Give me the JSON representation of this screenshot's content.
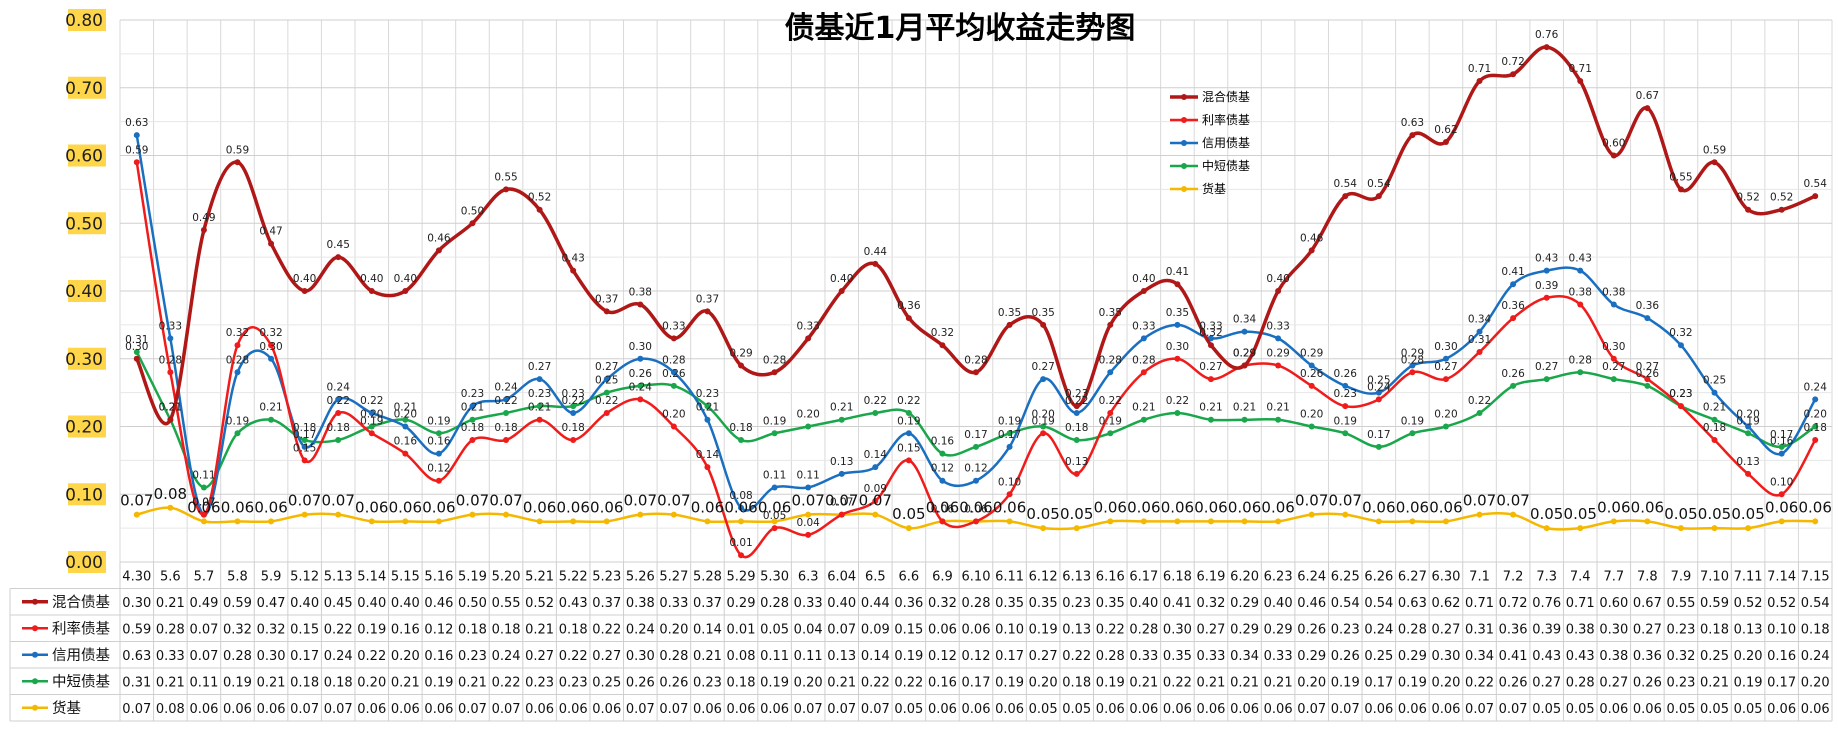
{
  "chart_data": {
    "type": "line",
    "title": "债基近1月平均收益走势图",
    "xlabel": "",
    "ylabel": "",
    "ylim": [
      0,
      0.8
    ],
    "yticks": [
      "0.00",
      "0.10",
      "0.20",
      "0.30",
      "0.40",
      "0.50",
      "0.60",
      "0.70",
      "0.80"
    ],
    "grid": true,
    "legend_position": "top-right",
    "categories": [
      "4.30",
      "5.6",
      "5.7",
      "5.8",
      "5.9",
      "5.12",
      "5.13",
      "5.14",
      "5.15",
      "5.16",
      "5.19",
      "5.20",
      "5.21",
      "5.22",
      "5.23",
      "5.26",
      "5.27",
      "5.28",
      "5.29",
      "5.30",
      "6.3",
      "6.04",
      "6.5",
      "6.6",
      "6.9",
      "6.10",
      "6.11",
      "6.12",
      "6.13",
      "6.16",
      "6.17",
      "6.18",
      "6.19",
      "6.20",
      "6.23",
      "6.24",
      "6.25",
      "6.26",
      "6.27",
      "6.30",
      "7.1",
      "7.2",
      "7.3",
      "7.4",
      "7.7",
      "7.8",
      "7.9",
      "7.10",
      "7.11",
      "7.14",
      "7.15"
    ],
    "series": [
      {
        "name": "混合债基",
        "color": "#b01818",
        "values": [
          0.3,
          0.21,
          0.49,
          0.59,
          0.47,
          0.4,
          0.45,
          0.4,
          0.4,
          0.46,
          0.5,
          0.55,
          0.52,
          0.43,
          0.37,
          0.38,
          0.33,
          0.37,
          0.29,
          0.28,
          0.33,
          0.4,
          0.44,
          0.36,
          0.32,
          0.28,
          0.35,
          0.35,
          0.23,
          0.35,
          0.4,
          0.41,
          0.32,
          0.29,
          0.4,
          0.46,
          0.54,
          0.54,
          0.63,
          0.62,
          0.71,
          0.72,
          0.76,
          0.71,
          0.6,
          0.67,
          0.55,
          0.59,
          0.52,
          0.52,
          0.54
        ],
        "labels": [
          "0.30",
          "0.21",
          "0.49",
          "0.59",
          "0.47",
          "0.40",
          "0.45",
          "0.40",
          "0.40",
          "0.46",
          "0.50",
          "0.55",
          "0.52",
          "0.43",
          "0.37",
          "0.38",
          "0.33",
          "0.37",
          "0.29",
          "0.28",
          "0.33",
          "0.40",
          "0.44",
          "0.36",
          "0.32",
          "0.28",
          "0.35",
          "0.35",
          "0.23",
          "0.35",
          "0.40",
          "0.41",
          "0.32",
          "0.29",
          "0.40",
          "0.46",
          "0.54",
          "0.54",
          "0.63",
          "0.62",
          "0.71",
          "0.72",
          "0.76",
          "0.71",
          "0.60",
          "0.67",
          "0.55",
          "0.59",
          "0.52",
          "0.52",
          "0.54"
        ]
      },
      {
        "name": "利率债基",
        "color": "#f01b1b",
        "values": [
          0.59,
          0.28,
          0.07,
          0.32,
          0.32,
          0.15,
          0.22,
          0.19,
          0.16,
          0.12,
          0.18,
          0.18,
          0.21,
          0.18,
          0.22,
          0.24,
          0.2,
          0.14,
          0.01,
          0.05,
          0.04,
          0.07,
          0.09,
          0.15,
          0.06,
          0.06,
          0.1,
          0.19,
          0.13,
          0.22,
          0.28,
          0.3,
          0.27,
          0.29,
          0.29,
          0.26,
          0.23,
          0.24,
          0.28,
          0.27,
          0.31,
          0.36,
          0.39,
          0.38,
          0.3,
          0.27,
          0.23,
          0.18,
          0.13,
          0.1,
          0.18
        ],
        "labels": [
          "0.59",
          "0.28",
          "0.07",
          "0.32",
          "0.32",
          "0.15",
          "0.22",
          "0.19",
          "0.16",
          "0.12",
          "0.18",
          "0.18",
          "0.21",
          "0.18",
          "0.22",
          "0.24",
          "0.20",
          "0.14",
          "0.01",
          "0.05",
          "0.04",
          "0.07",
          "0.09",
          "0.15",
          "0.06",
          "0.06",
          "0.10",
          "0.19",
          "0.13",
          "0.22",
          "0.28",
          "0.30",
          "0.27",
          "0.29",
          "0.29",
          "0.26",
          "0.23",
          "0.24",
          "0.28",
          "0.27",
          "0.31",
          "0.36",
          "0.39",
          "0.38",
          "0.30",
          "0.27",
          "0.23",
          "0.18",
          "0.13",
          "0.10",
          "0.18"
        ]
      },
      {
        "name": "信用债基",
        "color": "#1a6fc0",
        "values": [
          0.63,
          0.33,
          0.07,
          0.28,
          0.3,
          0.17,
          0.24,
          0.22,
          0.2,
          0.16,
          0.23,
          0.24,
          0.27,
          0.22,
          0.27,
          0.3,
          0.28,
          0.21,
          0.08,
          0.11,
          0.11,
          0.13,
          0.14,
          0.19,
          0.12,
          0.12,
          0.17,
          0.27,
          0.22,
          0.28,
          0.33,
          0.35,
          0.33,
          0.34,
          0.33,
          0.29,
          0.26,
          0.25,
          0.29,
          0.3,
          0.34,
          0.41,
          0.43,
          0.43,
          0.38,
          0.36,
          0.32,
          0.25,
          0.2,
          0.16,
          0.24
        ],
        "labels": [
          "0.63",
          "0.33",
          "0.07",
          "0.28",
          "0.30",
          "0.17",
          "0.24",
          "0.22",
          "0.20",
          "0.16",
          "0.23",
          "0.24",
          "0.27",
          "0.22",
          "0.27",
          "0.30",
          "0.28",
          "0.21",
          "0.08",
          "0.11",
          "0.11",
          "0.13",
          "0.14",
          "0.19",
          "0.12",
          "0.12",
          "0.17",
          "0.27",
          "0.22",
          "0.28",
          "0.33",
          "0.35",
          "0.33",
          "0.34",
          "0.33",
          "0.29",
          "0.26",
          "0.25",
          "0.29",
          "0.30",
          "0.34",
          "0.41",
          "0.43",
          "0.43",
          "0.38",
          "0.36",
          "0.32",
          "0.25",
          "0.20",
          "0.16",
          "0.24"
        ]
      },
      {
        "name": "中短债基",
        "color": "#1aa64a",
        "values": [
          0.31,
          0.21,
          0.11,
          0.19,
          0.21,
          0.18,
          0.18,
          0.2,
          0.21,
          0.19,
          0.21,
          0.22,
          0.23,
          0.23,
          0.25,
          0.26,
          0.26,
          0.23,
          0.18,
          0.19,
          0.2,
          0.21,
          0.22,
          0.22,
          0.16,
          0.17,
          0.19,
          0.2,
          0.18,
          0.19,
          0.21,
          0.22,
          0.21,
          0.21,
          0.21,
          0.2,
          0.19,
          0.17,
          0.19,
          0.2,
          0.22,
          0.26,
          0.27,
          0.28,
          0.27,
          0.26,
          0.23,
          0.21,
          0.19,
          0.17,
          0.2
        ],
        "labels": [
          "0.31",
          "0.21",
          "0.11",
          "0.19",
          "0.21",
          "0.18",
          "0.18",
          "0.20",
          "0.21",
          "0.19",
          "0.21",
          "0.22",
          "0.23",
          "0.23",
          "0.25",
          "0.26",
          "0.26",
          "0.23",
          "0.18",
          "0.19",
          "0.20",
          "0.21",
          "0.22",
          "0.22",
          "0.16",
          "0.17",
          "0.19",
          "0.20",
          "0.18",
          "0.19",
          "0.21",
          "0.22",
          "0.21",
          "0.21",
          "0.21",
          "0.20",
          "0.19",
          "0.17",
          "0.19",
          "0.20",
          "0.22",
          "0.26",
          "0.27",
          "0.28",
          "0.27",
          "0.26",
          "0.23",
          "0.21",
          "0.19",
          "0.17",
          "0.20"
        ]
      },
      {
        "name": "货基",
        "color": "#f5b800",
        "values": [
          0.07,
          0.08,
          0.06,
          0.06,
          0.06,
          0.07,
          0.07,
          0.06,
          0.06,
          0.06,
          0.07,
          0.07,
          0.06,
          0.06,
          0.06,
          0.07,
          0.07,
          0.06,
          0.06,
          0.06,
          0.07,
          0.07,
          0.07,
          0.05,
          0.06,
          0.06,
          0.06,
          0.05,
          0.05,
          0.06,
          0.06,
          0.06,
          0.06,
          0.06,
          0.06,
          0.07,
          0.07,
          0.06,
          0.06,
          0.06,
          0.07,
          0.07,
          0.05,
          0.05,
          0.06,
          0.06,
          0.05,
          0.05,
          0.05,
          0.06,
          0.06
        ],
        "labels": [
          "0.07",
          "0.08",
          "0.06",
          "0.06",
          "0.06",
          "0.07",
          "0.07",
          "0.06",
          "0.06",
          "0.06",
          "0.07",
          "0.07",
          "0.06",
          "0.06",
          "0.06",
          "0.07",
          "0.07",
          "0.06",
          "0.06",
          "0.06",
          "0.07",
          "0.07",
          "0.07",
          "0.05",
          "0.06",
          "0.06",
          "0.06",
          "0.05",
          "0.05",
          "0.06",
          "0.06",
          "0.06",
          "0.06",
          "0.06",
          "0.06",
          "0.07",
          "0.07",
          "0.06",
          "0.06",
          "0.06",
          "0.07",
          "0.07",
          "0.05",
          "0.05",
          "0.06",
          "0.06",
          "0.05",
          "0.05",
          "0.05",
          "0.06",
          "0.06"
        ]
      }
    ]
  }
}
